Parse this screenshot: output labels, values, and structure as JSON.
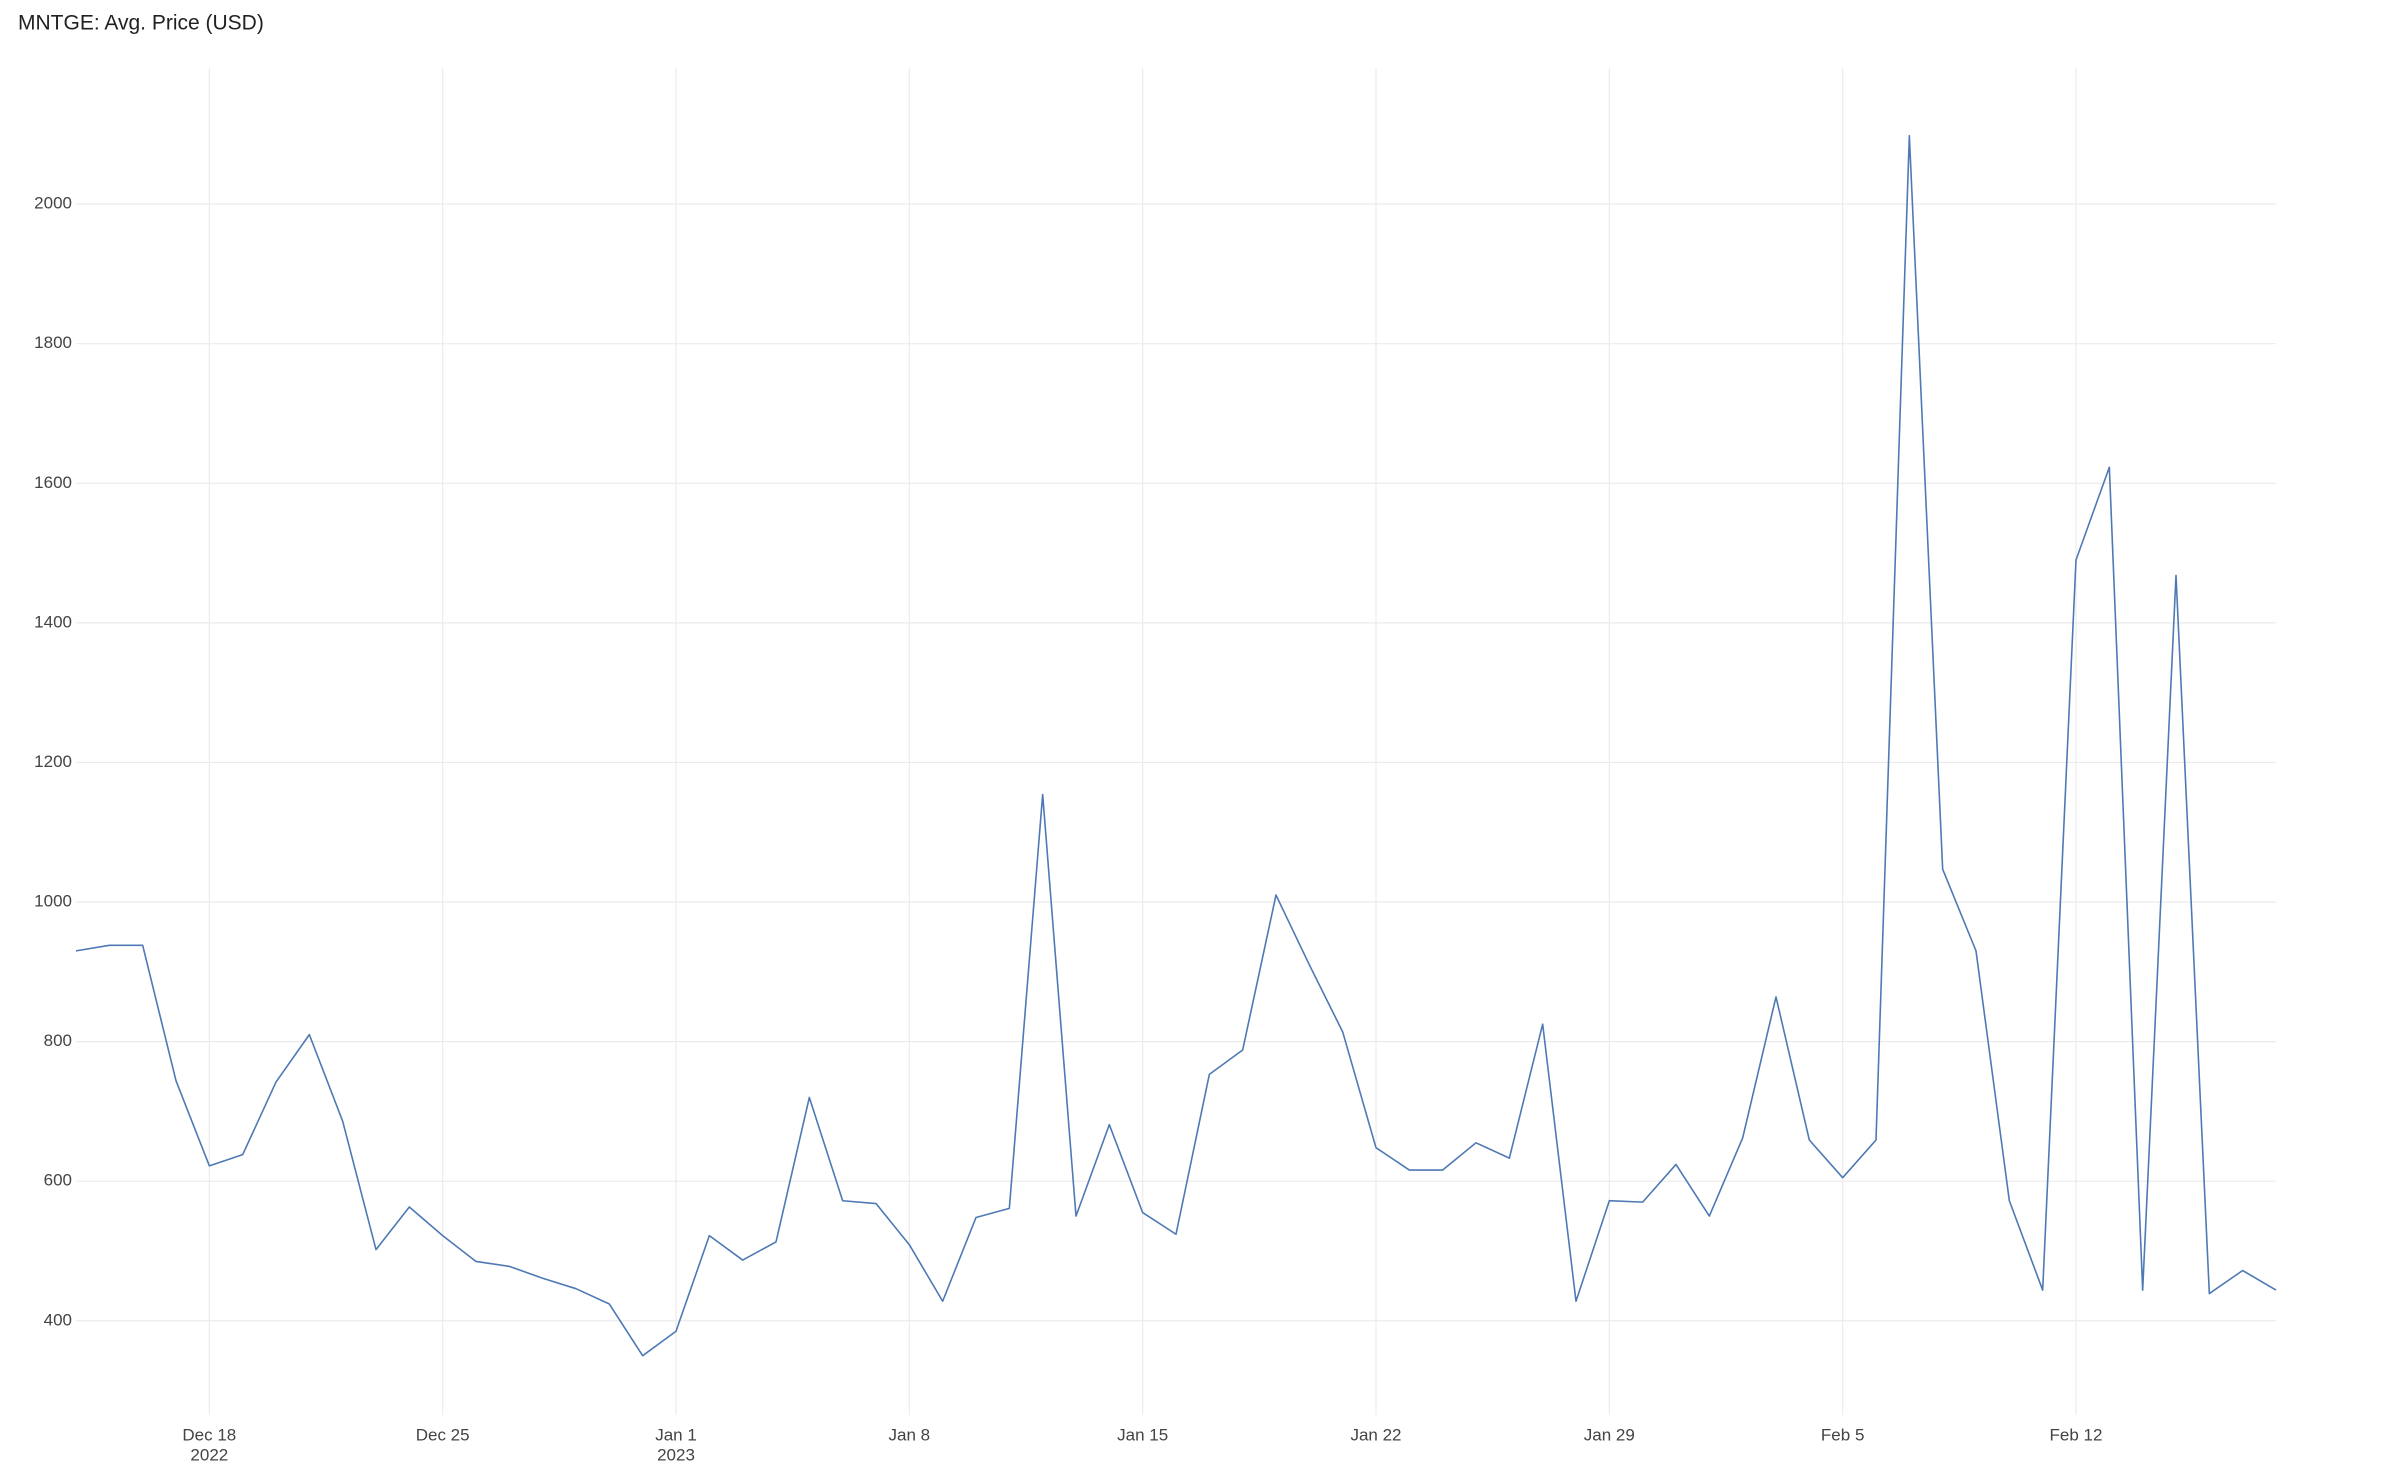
{
  "chart_data": {
    "type": "line",
    "title": "MNTGE: Avg. Price (USD)",
    "grid": true,
    "x": [
      "2022-12-14",
      "2022-12-15",
      "2022-12-16",
      "2022-12-17",
      "2022-12-18",
      "2022-12-19",
      "2022-12-20",
      "2022-12-21",
      "2022-12-22",
      "2022-12-23",
      "2022-12-24",
      "2022-12-25",
      "2022-12-26",
      "2022-12-27",
      "2022-12-28",
      "2022-12-29",
      "2022-12-30",
      "2022-12-31",
      "2023-01-01",
      "2023-01-02",
      "2023-01-03",
      "2023-01-04",
      "2023-01-05",
      "2023-01-06",
      "2023-01-07",
      "2023-01-08",
      "2023-01-09",
      "2023-01-10",
      "2023-01-11",
      "2023-01-12",
      "2023-01-13",
      "2023-01-14",
      "2023-01-15",
      "2023-01-16",
      "2023-01-17",
      "2023-01-18",
      "2023-01-19",
      "2023-01-20",
      "2023-01-21",
      "2023-01-22",
      "2023-01-23",
      "2023-01-24",
      "2023-01-25",
      "2023-01-26",
      "2023-01-27",
      "2023-01-28",
      "2023-01-29",
      "2023-01-30",
      "2023-01-31",
      "2023-02-01",
      "2023-02-02",
      "2023-02-03",
      "2023-02-04",
      "2023-02-05",
      "2023-02-06",
      "2023-02-07",
      "2023-02-08",
      "2023-02-09",
      "2023-02-10",
      "2023-02-11",
      "2023-02-12",
      "2023-02-13",
      "2023-02-14",
      "2023-02-15",
      "2023-02-16",
      "2023-02-17",
      "2023-02-18"
    ],
    "series": [
      {
        "name": "Avg. Price",
        "color": "#4e79b4",
        "values": [
          930,
          938,
          938,
          744,
          622,
          638,
          742,
          810,
          686,
          502,
          563,
          522,
          485,
          478,
          461,
          446,
          424,
          350,
          385,
          522,
          487,
          513,
          720,
          572,
          568,
          509,
          428,
          548,
          561,
          1154,
          550,
          681,
          555,
          524,
          753,
          788,
          1010,
          910,
          814,
          648,
          616,
          616,
          655,
          633,
          825,
          428,
          572,
          570,
          624,
          550,
          662,
          864,
          659,
          605,
          659,
          2098,
          1047,
          930,
          572,
          444,
          1490,
          1623,
          444,
          1468,
          439,
          472,
          444
        ]
      }
    ],
    "xlim": [
      "2022-12-14",
      "2023-02-18"
    ],
    "xticks": [
      {
        "value": "2022-12-18",
        "label": "Dec 18",
        "year": "2022"
      },
      {
        "value": "2022-12-25",
        "label": "Dec 25"
      },
      {
        "value": "2023-01-01",
        "label": "Jan 1",
        "year": "2023"
      },
      {
        "value": "2023-01-08",
        "label": "Jan 8"
      },
      {
        "value": "2023-01-15",
        "label": "Jan 15"
      },
      {
        "value": "2023-01-22",
        "label": "Jan 22"
      },
      {
        "value": "2023-01-29",
        "label": "Jan 29"
      },
      {
        "value": "2023-02-05",
        "label": "Feb 5"
      },
      {
        "value": "2023-02-12",
        "label": "Feb 12"
      }
    ],
    "ylim": [
      265,
      2195
    ],
    "yticks": [
      400,
      600,
      800,
      1000,
      1200,
      1400,
      1600,
      1800,
      2000
    ]
  }
}
